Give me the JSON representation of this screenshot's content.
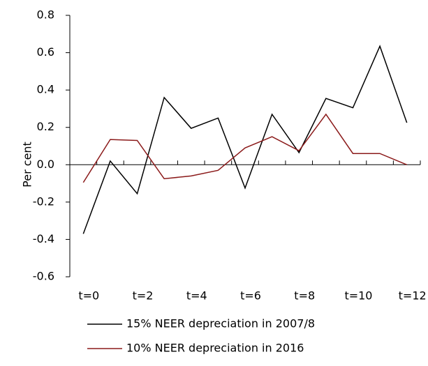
{
  "chart_data": {
    "type": "line",
    "categories": [
      "t=0",
      null,
      "t=2",
      null,
      "t=4",
      null,
      "t=6",
      null,
      "t=8",
      null,
      "t=10",
      null,
      "t=12"
    ],
    "series": [
      {
        "name": "15% NEER depreciation in 2007/8",
        "color": "#000000",
        "values": [
          -0.37,
          0.02,
          -0.155,
          0.36,
          0.195,
          0.25,
          -0.125,
          0.27,
          0.065,
          0.355,
          0.305,
          0.635,
          0.225
        ]
      },
      {
        "name": "10% NEER depreciation in 2016",
        "color": "#8b1a1a",
        "values": [
          -0.095,
          0.135,
          0.13,
          -0.075,
          -0.06,
          -0.03,
          0.09,
          0.15,
          0.075,
          0.27,
          0.06,
          0.06,
          0.0
        ]
      }
    ],
    "y_label": "Per cent",
    "ylim": [
      -0.6,
      0.8
    ],
    "yticks": [
      -0.6,
      -0.4,
      -0.2,
      {
        "value": 0,
        "label": "0.0"
      },
      0.2,
      0.4,
      0.6,
      0.8
    ]
  }
}
